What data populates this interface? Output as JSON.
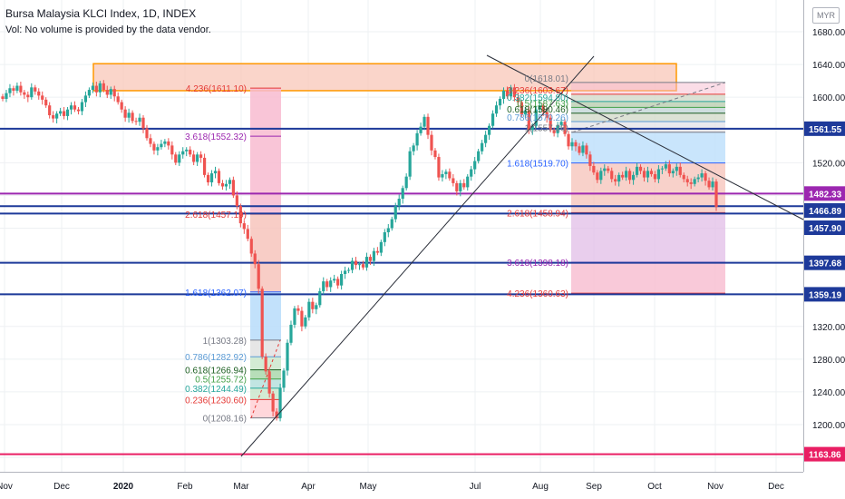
{
  "header": {
    "title": "Bursa Malaysia KLCI Index, 1D, INDEX",
    "volume_note": "Vol: No volume is provided by the data vendor.",
    "currency": "MYR"
  },
  "chart_data": {
    "type": "candlestick",
    "price_axis": {
      "ticks": [
        "1680.00",
        "1640.00",
        "1600.00",
        "1560.00",
        "1520.00",
        "1480.00",
        "1440.00",
        "1400.00",
        "1360.00",
        "1320.00",
        "1280.00",
        "1240.00",
        "1200.00",
        "1160.00"
      ],
      "range": [
        1148,
        1704
      ]
    },
    "time_axis": {
      "ticks": [
        "Nov",
        "Dec",
        "2020",
        "Feb",
        "Mar",
        "Apr",
        "May",
        "Jul",
        "Aug",
        "Sep",
        "Oct",
        "Nov",
        "Dec"
      ],
      "bold": [
        "2020"
      ]
    },
    "horizontal_levels": [
      {
        "label": "1561.55",
        "value": 1561.55,
        "color": "#1e3a9a"
      },
      {
        "label": "1482.33",
        "value": 1482.33,
        "color": "#9c27b0"
      },
      {
        "label": "1466.89",
        "value": 1466.89,
        "color": "#1e3a9a"
      },
      {
        "label": "1457.90",
        "value": 1457.9,
        "color": "#1e3a9a"
      },
      {
        "label": "1397.68",
        "value": 1397.68,
        "color": "#1e3a9a"
      },
      {
        "label": "1359.19",
        "value": 1359.19,
        "color": "#1e3a9a"
      },
      {
        "label": "1163.86",
        "value": 1163.86,
        "color": "#e91e63"
      }
    ],
    "fib_labels_march": [
      {
        "text": "4.236(1611.10)",
        "value": 1611.1,
        "color": "#e53935"
      },
      {
        "text": "3.618(1552.32)",
        "value": 1552.32,
        "color": "#9c27b0"
      },
      {
        "text": "2.618(1457.19)",
        "value": 1457.19,
        "color": "#e53935"
      },
      {
        "text": "1.618(1362.07)",
        "value": 1362.07,
        "color": "#2962ff"
      },
      {
        "text": "1(1303.28)",
        "value": 1303.28,
        "color": "#787b86"
      },
      {
        "text": "0.786(1282.92)",
        "value": 1282.92,
        "color": "#5b9bd5"
      },
      {
        "text": "0.618(1266.94)",
        "value": 1266.94,
        "color": "#1b5e20"
      },
      {
        "text": "0.5(1255.72)",
        "value": 1255.72,
        "color": "#43a047"
      },
      {
        "text": "0.382(1244.49)",
        "value": 1244.49,
        "color": "#26a69a"
      },
      {
        "text": "0.236(1230.60)",
        "value": 1230.6,
        "color": "#e53935"
      },
      {
        "text": "0(1208.16)",
        "value": 1208.16,
        "color": "#787b86"
      }
    ],
    "fib_labels_july": [
      {
        "text": "0(1618.01)",
        "value": 1618.01,
        "color": "#787b86"
      },
      {
        "text": "0.236(1603.67)",
        "value": 1603.67,
        "color": "#e53935"
      },
      {
        "text": "0.382(1594.80)",
        "value": 1594.8,
        "color": "#26a69a"
      },
      {
        "text": "0.5(1587.63)",
        "value": 1587.63,
        "color": "#43a047"
      },
      {
        "text": "0.618(1580.46)",
        "value": 1580.46,
        "color": "#1b5e20"
      },
      {
        "text": "0.786(1570.26)",
        "value": 1570.26,
        "color": "#5b9bd5"
      },
      {
        "text": "1(1557.26)",
        "value": 1557.26,
        "color": "#787b86"
      },
      {
        "text": "1.618(1519.70)",
        "value": 1519.7,
        "color": "#2962ff"
      },
      {
        "text": "2.618(1458.94)",
        "value": 1458.94,
        "color": "#e53935"
      },
      {
        "text": "3.618(1398.18)",
        "value": 1398.18,
        "color": "#9c27b0"
      },
      {
        "text": "4.236(1360.63)",
        "value": 1360.63,
        "color": "#e53935"
      }
    ],
    "resistance_zone": {
      "low": 1608,
      "high": 1641,
      "fill": "#f8c7b8",
      "stroke": "#ff9800"
    },
    "closes": [
      1598,
      1605,
      1611,
      1608,
      1614,
      1606,
      1603,
      1600,
      1612,
      1607,
      1602,
      1597,
      1590,
      1578,
      1574,
      1580,
      1583,
      1577,
      1585,
      1590,
      1585,
      1583,
      1594,
      1602,
      1609,
      1614,
      1606,
      1617,
      1609,
      1603,
      1610,
      1601,
      1594,
      1585,
      1575,
      1581,
      1571,
      1570,
      1575,
      1562,
      1550,
      1543,
      1535,
      1539,
      1543,
      1546,
      1541,
      1530,
      1520,
      1530,
      1534,
      1536,
      1530,
      1521,
      1530,
      1526,
      1505,
      1496,
      1507,
      1510,
      1495,
      1491,
      1494,
      1499,
      1480,
      1467,
      1446,
      1439,
      1427,
      1409,
      1396,
      1366,
      1283,
      1265,
      1238,
      1216,
      1208,
      1245,
      1266,
      1300,
      1322,
      1342,
      1339,
      1320,
      1331,
      1350,
      1341,
      1346,
      1363,
      1375,
      1368,
      1376,
      1378,
      1370,
      1384,
      1388,
      1389,
      1400,
      1395,
      1396,
      1392,
      1405,
      1400,
      1412,
      1410,
      1423,
      1435,
      1440,
      1451,
      1467,
      1476,
      1489,
      1503,
      1534,
      1541,
      1556,
      1564,
      1576,
      1554,
      1535,
      1527,
      1502,
      1506,
      1509,
      1501,
      1495,
      1485,
      1495,
      1490,
      1503,
      1512,
      1522,
      1534,
      1544,
      1554,
      1565,
      1580,
      1590,
      1598,
      1608,
      1601,
      1612,
      1600,
      1594,
      1579,
      1584,
      1560,
      1565,
      1585,
      1590,
      1582,
      1575,
      1560,
      1556,
      1566,
      1570,
      1555,
      1540,
      1545,
      1540,
      1532,
      1541,
      1530,
      1516,
      1508,
      1499,
      1510,
      1513,
      1510,
      1500,
      1497,
      1505,
      1502,
      1510,
      1499,
      1505,
      1515,
      1510,
      1502,
      1510,
      1506,
      1500,
      1512,
      1513,
      1518,
      1507,
      1510,
      1515,
      1505,
      1500,
      1496,
      1494,
      1500,
      1502,
      1507,
      1498,
      1490,
      1497,
      1466
    ]
  }
}
